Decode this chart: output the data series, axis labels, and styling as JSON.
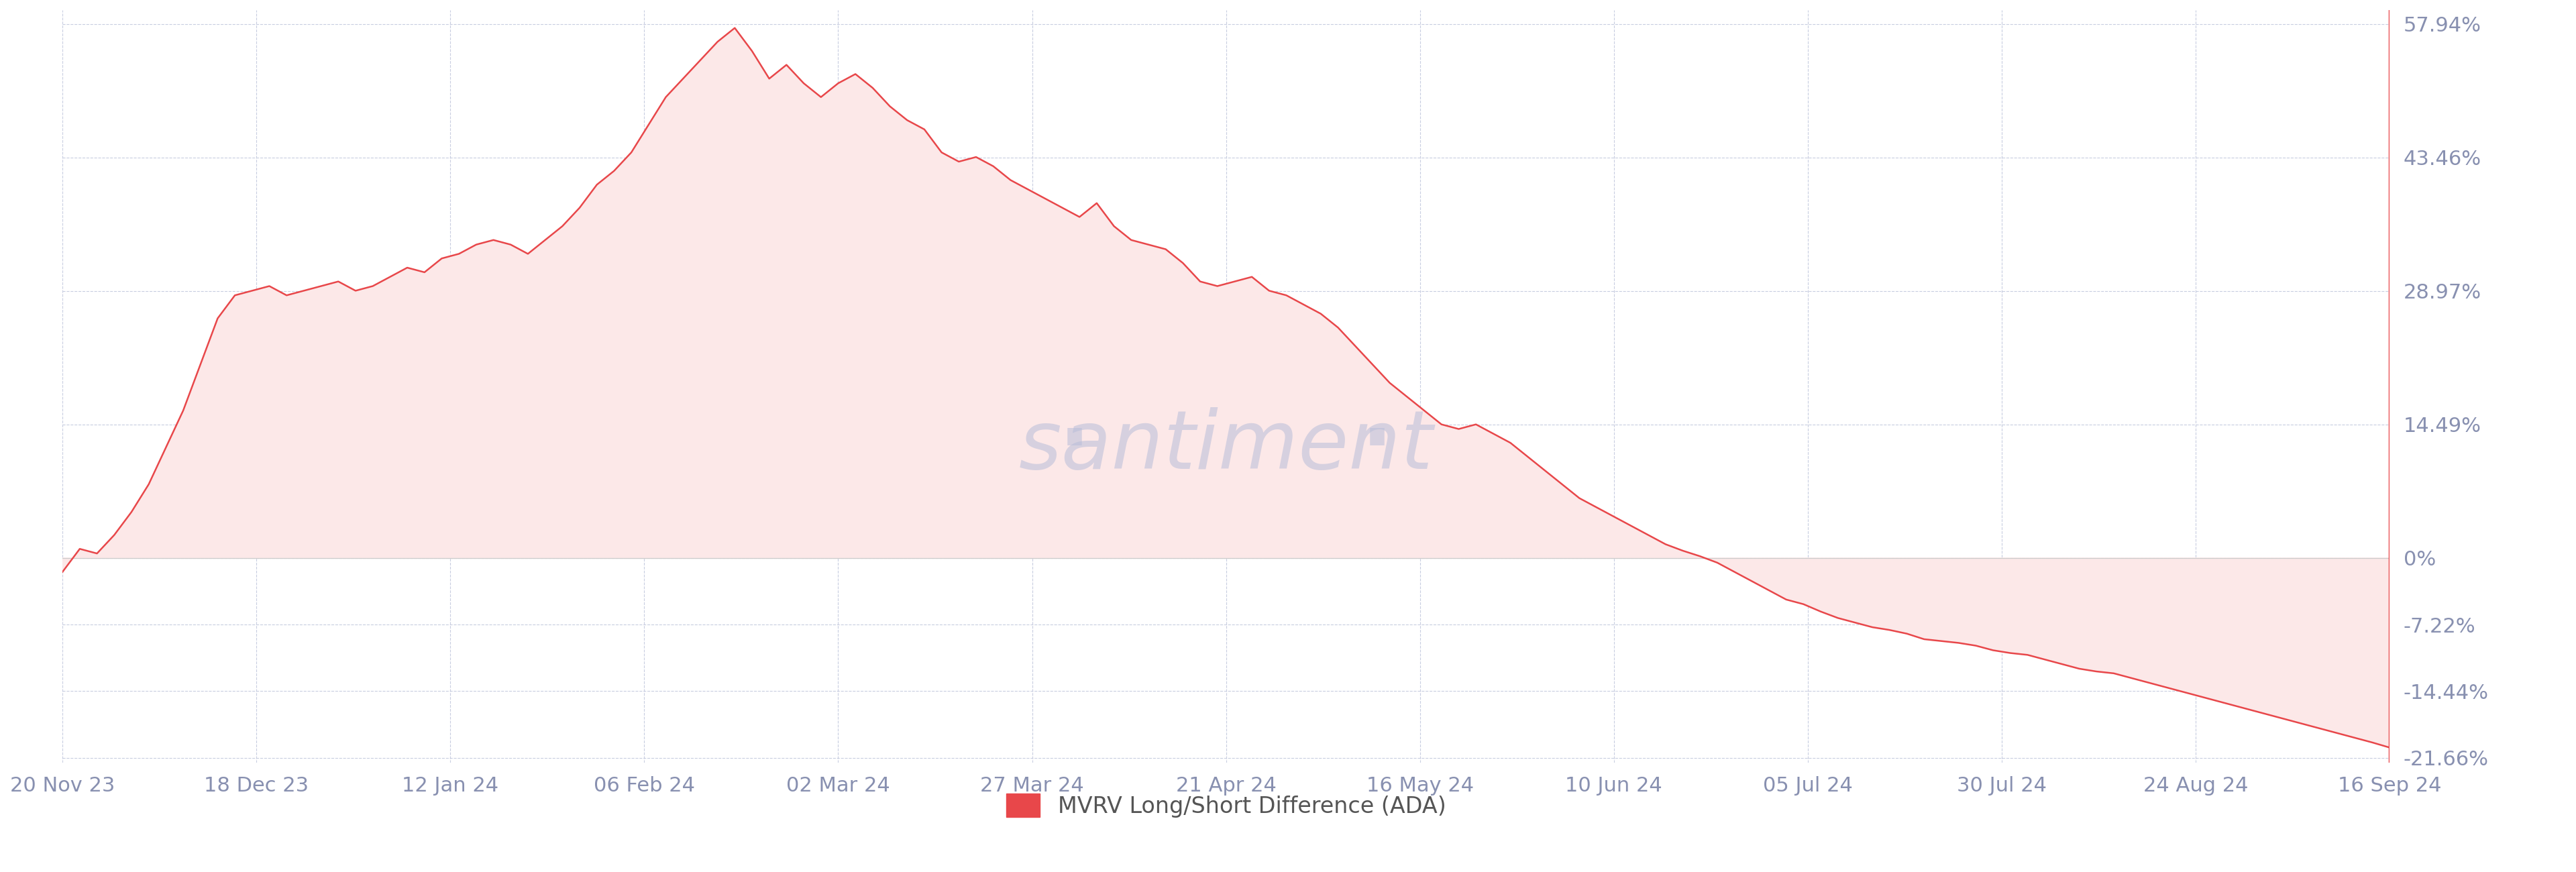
{
  "legend_label": "MVRV Long/Short Difference (ADA)",
  "line_color": "#e8474a",
  "fill_color": "#fce8e8",
  "background_color": "#ffffff",
  "grid_color": "#c8cde0",
  "watermark": "santiment",
  "yticks": [
    57.94,
    43.46,
    28.97,
    14.49,
    0,
    -7.22,
    -14.44,
    -21.66
  ],
  "ytick_labels": [
    "57.94%",
    "43.46%",
    "28.97%",
    "14.49%",
    "0%",
    "-7.22%",
    "-14.44%",
    "-21.66%"
  ],
  "x_tick_dates": [
    "20 Nov 23",
    "18 Dec 23",
    "12 Jan 24",
    "06 Feb 24",
    "02 Mar 24",
    "27 Mar 24",
    "21 Apr 24",
    "16 May 24",
    "10 Jun 24",
    "05 Jul 24",
    "30 Jul 24",
    "24 Aug 24",
    "16 Sep 24"
  ],
  "series": [
    [
      0,
      -1.5
    ],
    [
      2,
      1.0
    ],
    [
      4,
      0.5
    ],
    [
      6,
      2.5
    ],
    [
      8,
      5.0
    ],
    [
      10,
      8.0
    ],
    [
      12,
      12.0
    ],
    [
      14,
      16.0
    ],
    [
      16,
      21.0
    ],
    [
      18,
      26.0
    ],
    [
      20,
      28.5
    ],
    [
      22,
      29.0
    ],
    [
      24,
      29.5
    ],
    [
      26,
      28.5
    ],
    [
      28,
      29.0
    ],
    [
      30,
      29.5
    ],
    [
      32,
      30.0
    ],
    [
      34,
      29.0
    ],
    [
      36,
      29.5
    ],
    [
      38,
      30.5
    ],
    [
      40,
      31.5
    ],
    [
      42,
      31.0
    ],
    [
      44,
      32.5
    ],
    [
      46,
      33.0
    ],
    [
      48,
      34.0
    ],
    [
      50,
      34.5
    ],
    [
      52,
      34.0
    ],
    [
      54,
      33.0
    ],
    [
      56,
      34.5
    ],
    [
      58,
      36.0
    ],
    [
      60,
      38.0
    ],
    [
      62,
      40.5
    ],
    [
      64,
      42.0
    ],
    [
      66,
      44.0
    ],
    [
      68,
      47.0
    ],
    [
      70,
      50.0
    ],
    [
      72,
      52.0
    ],
    [
      74,
      54.0
    ],
    [
      76,
      56.0
    ],
    [
      78,
      57.5
    ],
    [
      80,
      55.0
    ],
    [
      82,
      52.0
    ],
    [
      84,
      53.5
    ],
    [
      86,
      51.5
    ],
    [
      88,
      50.0
    ],
    [
      90,
      51.5
    ],
    [
      92,
      52.5
    ],
    [
      94,
      51.0
    ],
    [
      96,
      49.0
    ],
    [
      98,
      47.5
    ],
    [
      100,
      46.5
    ],
    [
      102,
      44.0
    ],
    [
      104,
      43.0
    ],
    [
      106,
      43.5
    ],
    [
      108,
      42.5
    ],
    [
      110,
      41.0
    ],
    [
      112,
      40.0
    ],
    [
      114,
      39.0
    ],
    [
      116,
      38.0
    ],
    [
      118,
      37.0
    ],
    [
      120,
      38.5
    ],
    [
      122,
      36.0
    ],
    [
      124,
      34.5
    ],
    [
      126,
      34.0
    ],
    [
      128,
      33.5
    ],
    [
      130,
      32.0
    ],
    [
      132,
      30.0
    ],
    [
      134,
      29.5
    ],
    [
      136,
      30.0
    ],
    [
      138,
      30.5
    ],
    [
      140,
      29.0
    ],
    [
      142,
      28.5
    ],
    [
      144,
      27.5
    ],
    [
      146,
      26.5
    ],
    [
      148,
      25.0
    ],
    [
      150,
      23.0
    ],
    [
      152,
      21.0
    ],
    [
      154,
      19.0
    ],
    [
      156,
      17.5
    ],
    [
      158,
      16.0
    ],
    [
      160,
      14.5
    ],
    [
      162,
      14.0
    ],
    [
      164,
      14.5
    ],
    [
      166,
      13.5
    ],
    [
      168,
      12.5
    ],
    [
      170,
      11.0
    ],
    [
      172,
      9.5
    ],
    [
      174,
      8.0
    ],
    [
      176,
      6.5
    ],
    [
      178,
      5.5
    ],
    [
      180,
      4.5
    ],
    [
      182,
      3.5
    ],
    [
      184,
      2.5
    ],
    [
      186,
      1.5
    ],
    [
      188,
      0.8
    ],
    [
      190,
      0.2
    ],
    [
      192,
      -0.5
    ],
    [
      194,
      -1.5
    ],
    [
      196,
      -2.5
    ],
    [
      198,
      -3.5
    ],
    [
      200,
      -4.5
    ],
    [
      202,
      -5.0
    ],
    [
      204,
      -5.8
    ],
    [
      206,
      -6.5
    ],
    [
      208,
      -7.0
    ],
    [
      210,
      -7.5
    ],
    [
      212,
      -7.8
    ],
    [
      214,
      -8.2
    ],
    [
      216,
      -8.8
    ],
    [
      218,
      -9.0
    ],
    [
      220,
      -9.2
    ],
    [
      222,
      -9.5
    ],
    [
      224,
      -10.0
    ],
    [
      226,
      -10.3
    ],
    [
      228,
      -10.5
    ],
    [
      230,
      -11.0
    ],
    [
      232,
      -11.5
    ],
    [
      234,
      -12.0
    ],
    [
      236,
      -12.3
    ],
    [
      238,
      -12.5
    ],
    [
      240,
      -13.0
    ],
    [
      242,
      -13.5
    ],
    [
      244,
      -14.0
    ],
    [
      246,
      -14.5
    ],
    [
      248,
      -15.0
    ],
    [
      250,
      -15.5
    ],
    [
      252,
      -16.0
    ],
    [
      254,
      -16.5
    ],
    [
      256,
      -17.0
    ],
    [
      258,
      -17.5
    ],
    [
      260,
      -18.0
    ],
    [
      262,
      -18.5
    ],
    [
      264,
      -19.0
    ],
    [
      266,
      -19.5
    ],
    [
      268,
      -20.0
    ],
    [
      270,
      -20.55
    ]
  ]
}
